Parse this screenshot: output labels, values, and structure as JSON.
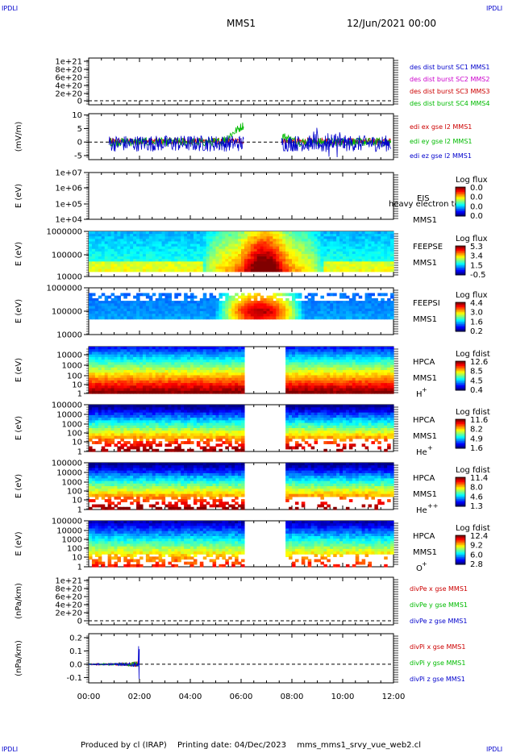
{
  "corner_label": "IPDLI",
  "header": {
    "spacecraft": "MMS1",
    "datetime": "12/Jun/2021 00:00"
  },
  "footer": {
    "produced_by": "Produced by cl (IRAP)",
    "printing_date": "Printing date: 04/Dec/2023",
    "script": "mms_mms1_srvy_vue_web2.cl"
  },
  "time_axis": {
    "ticks": [
      "00:00",
      "02:00",
      "04:00",
      "06:00",
      "08:00",
      "10:00",
      "12:00"
    ],
    "range_hours": [
      0,
      12
    ]
  },
  "chart_data": [
    {
      "type": "line",
      "panel": "des_dist",
      "ylabel": "",
      "ytick_labels": [
        "1e+21",
        "8e+20",
        "6e+20",
        "4e+20",
        "2e+20",
        "0"
      ],
      "series": [
        {
          "name": "des dist burst SC1 MMS1",
          "color": "#0000cc"
        },
        {
          "name": "des dist burst SC2 MMS2",
          "color": "#cc00cc"
        },
        {
          "name": "des dist burst SC3 MMS3",
          "color": "#cc0000"
        },
        {
          "name": "des dist burst SC4 MMS4",
          "color": "#00bb00"
        }
      ],
      "note_zero_line": true
    },
    {
      "type": "line",
      "panel": "edi_e",
      "ylabel": "(mV/m)",
      "ytick_labels": [
        "10",
        "5",
        "0",
        "-5"
      ],
      "ylim": [
        -6.5,
        10.5
      ],
      "series": [
        {
          "name": "edi ex gse l2 MMS1",
          "color": "#cc0000"
        },
        {
          "name": "edi ey gse l2 MMS1",
          "color": "#00bb00"
        },
        {
          "name": "edi ez gse l2 MMS1",
          "color": "#0000cc"
        }
      ],
      "data_intervals_hours": [
        [
          0.8,
          6.1
        ],
        [
          7.6,
          11.9
        ]
      ]
    },
    {
      "type": "heatmap",
      "panel": "eis",
      "ylabel": "E (eV)",
      "ytick_labels": [
        "1e+07",
        "1e+06",
        "1e+05",
        "1e+04"
      ],
      "instrument": "EIS",
      "spacecraft": "MMS1",
      "overlay_text": "heavy electron to",
      "colorbar": {
        "title": "Log flux",
        "ticks": [
          "0.0",
          "0.0",
          "0.0",
          "0.0"
        ]
      }
    },
    {
      "type": "heatmap",
      "panel": "feepse",
      "ylabel": "E (eV)",
      "ytick_labels": [
        "1000000",
        "100000",
        "10000"
      ],
      "instrument": "FEEPSE",
      "spacecraft": "MMS1",
      "colorbar": {
        "title": "Log flux",
        "ticks": [
          "5.3",
          "3.4",
          "1.5",
          "-0.5"
        ]
      },
      "features": {
        "enhancement_hours": [
          4.5,
          9.2
        ]
      }
    },
    {
      "type": "heatmap",
      "panel": "feepsi",
      "ylabel": "E (eV)",
      "ytick_labels": [
        "1000000",
        "100000",
        "10000"
      ],
      "instrument": "FEEPSI",
      "spacecraft": "MMS1",
      "colorbar": {
        "title": "Log flux",
        "ticks": [
          "4.4",
          "3.0",
          "1.6",
          "0.2"
        ]
      },
      "features": {
        "enhancement_hours": [
          5.0,
          8.5
        ]
      }
    },
    {
      "type": "heatmap",
      "panel": "hpca_h",
      "ylabel": "E (eV)",
      "ytick_labels": [
        "10000",
        "1000",
        "100",
        "10",
        "1"
      ],
      "instrument": "HPCA",
      "spacecraft": "MMS1",
      "species": "H",
      "charge": "+",
      "colorbar": {
        "title": "Log fdist",
        "ticks": [
          "12.6",
          "8.5",
          "4.5",
          "0.4"
        ]
      },
      "data_gap_hours": [
        6.1,
        7.8
      ]
    },
    {
      "type": "heatmap",
      "panel": "hpca_he1",
      "ylabel": "E (eV)",
      "ytick_labels": [
        "100000",
        "10000",
        "1000",
        "100",
        "10",
        "1"
      ],
      "instrument": "HPCA",
      "spacecraft": "MMS1",
      "species": "He",
      "charge": "+",
      "colorbar": {
        "title": "Log fdist",
        "ticks": [
          "11.6",
          "8.2",
          "4.9",
          "1.6"
        ]
      },
      "data_gap_hours": [
        6.1,
        7.8
      ]
    },
    {
      "type": "heatmap",
      "panel": "hpca_he2",
      "ylabel": "E (eV)",
      "ytick_labels": [
        "100000",
        "10000",
        "1000",
        "100",
        "10",
        "1"
      ],
      "instrument": "HPCA",
      "spacecraft": "MMS1",
      "species": "He",
      "charge": "++",
      "colorbar": {
        "title": "Log fdist",
        "ticks": [
          "11.4",
          "8.0",
          "4.6",
          "1.3"
        ]
      },
      "data_gap_hours": [
        6.1,
        7.8
      ]
    },
    {
      "type": "heatmap",
      "panel": "hpca_o",
      "ylabel": "E (eV)",
      "ytick_labels": [
        "100000",
        "10000",
        "1000",
        "100",
        "10",
        "1"
      ],
      "instrument": "HPCA",
      "spacecraft": "MMS1",
      "species": "O",
      "charge": "+",
      "colorbar": {
        "title": "Log fdist",
        "ticks": [
          "12.4",
          "9.2",
          "6.0",
          "2.8"
        ]
      },
      "data_gap_hours": [
        6.1,
        7.8
      ]
    },
    {
      "type": "line",
      "panel": "divpe",
      "ylabel": "(nPa/km)",
      "ytick_labels": [
        "1e+21",
        "8e+20",
        "6e+20",
        "4e+20",
        "2e+20",
        "0"
      ],
      "series": [
        {
          "name": "divPe x gse MMS1",
          "color": "#cc0000"
        },
        {
          "name": "divPe y gse MMS1",
          "color": "#00bb00"
        },
        {
          "name": "divPe z gse MMS1",
          "color": "#0000cc"
        }
      ]
    },
    {
      "type": "line",
      "panel": "divpi",
      "ylabel": "(nPa/km)",
      "ytick_labels": [
        "0.2",
        "0.1",
        "0.0",
        "-0.1"
      ],
      "ylim": [
        -0.14,
        0.23
      ],
      "series": [
        {
          "name": "divPi x gse MMS1",
          "color": "#cc0000"
        },
        {
          "name": "divPi y gse MMS1",
          "color": "#00bb00"
        },
        {
          "name": "divPi z gse MMS1",
          "color": "#0000cc"
        }
      ],
      "data_interval_hours": [
        0.0,
        2.0
      ]
    }
  ]
}
